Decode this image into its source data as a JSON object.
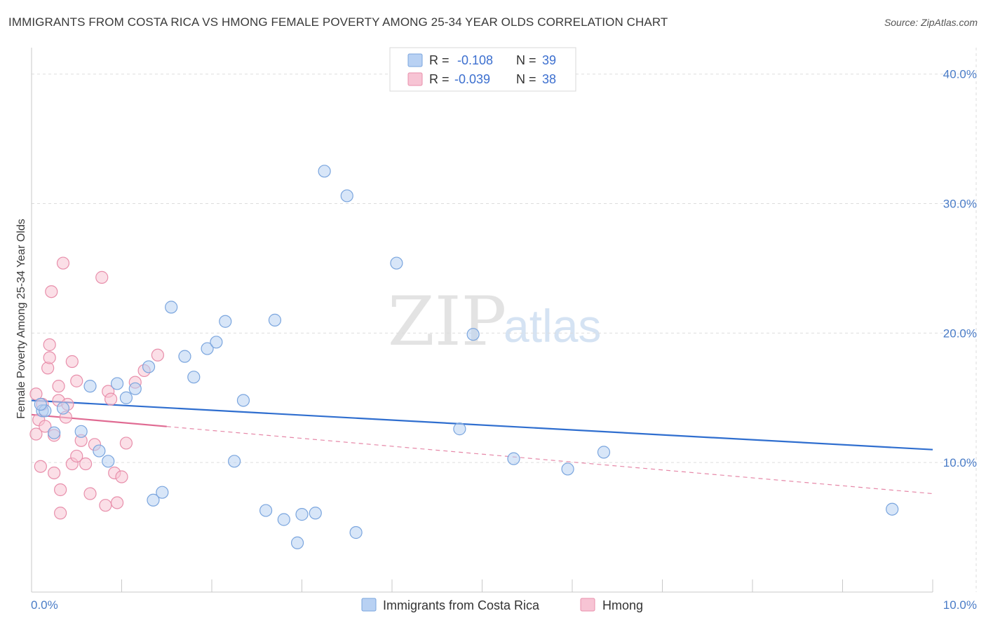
{
  "header": {
    "title": "IMMIGRANTS FROM COSTA RICA VS HMONG FEMALE POVERTY AMONG 25-34 YEAR OLDS CORRELATION CHART",
    "source": "Source: ZipAtlas.com"
  },
  "watermark": {
    "zip": "ZIP",
    "atlas": "atlas"
  },
  "colors": {
    "blue_fill": "#b8d1f3",
    "blue_stroke": "#7aa5de",
    "blue_line": "#2f6ecf",
    "pink_fill": "#f7c4d4",
    "pink_stroke": "#e88fab",
    "pink_line": "#e06a92",
    "tick": "#4a7cc7",
    "grid": "#dddddd"
  },
  "legend": {
    "r_label": "R =",
    "n_label": "N =",
    "series": [
      {
        "r": "-0.108",
        "n": "39"
      },
      {
        "r": "-0.039",
        "n": "38"
      }
    ]
  },
  "bottom_legend": [
    "Immigrants from Costa Rica",
    "Hmong"
  ],
  "chart_data": {
    "type": "scatter",
    "title": "IMMIGRANTS FROM COSTA RICA VS HMONG FEMALE POVERTY AMONG 25-34 YEAR OLDS CORRELATION CHART",
    "xlabel": "",
    "ylabel": "Female Poverty Among 25-34 Year Olds",
    "xlim": [
      0,
      10
    ],
    "ylim": [
      0,
      41.5
    ],
    "x_tick_labels": [
      "0.0%",
      "10.0%"
    ],
    "y_ticks": [
      10,
      20,
      30,
      40
    ],
    "y_tick_labels": [
      "10.0%",
      "20.0%",
      "30.0%",
      "40.0%"
    ],
    "grid": true,
    "series": [
      {
        "name": "Immigrants from Costa Rica",
        "r": -0.108,
        "n": 39,
        "trend": {
          "x": [
            0.0,
            10.0
          ],
          "y": [
            14.8,
            11.0
          ],
          "style": "solid",
          "color": "#2f6ecf"
        },
        "points": [
          [
            0.12,
            14.0
          ],
          [
            0.15,
            14.0
          ],
          [
            0.25,
            12.3
          ],
          [
            0.35,
            14.2
          ],
          [
            0.55,
            12.4
          ],
          [
            0.65,
            15.9
          ],
          [
            0.75,
            10.9
          ],
          [
            0.85,
            10.1
          ],
          [
            0.95,
            16.1
          ],
          [
            1.05,
            15.0
          ],
          [
            1.15,
            15.7
          ],
          [
            1.3,
            17.4
          ],
          [
            1.35,
            7.1
          ],
          [
            1.45,
            7.7
          ],
          [
            1.55,
            22.0
          ],
          [
            1.7,
            18.2
          ],
          [
            1.8,
            16.6
          ],
          [
            1.95,
            18.8
          ],
          [
            2.05,
            19.3
          ],
          [
            2.15,
            20.9
          ],
          [
            2.25,
            10.1
          ],
          [
            2.35,
            14.8
          ],
          [
            2.6,
            6.3
          ],
          [
            2.7,
            21.0
          ],
          [
            2.8,
            5.6
          ],
          [
            2.95,
            3.8
          ],
          [
            3.0,
            6.0
          ],
          [
            3.15,
            6.1
          ],
          [
            3.25,
            32.5
          ],
          [
            3.5,
            30.6
          ],
          [
            3.6,
            4.6
          ],
          [
            4.05,
            25.4
          ],
          [
            4.75,
            12.6
          ],
          [
            4.9,
            19.9
          ],
          [
            5.35,
            10.3
          ],
          [
            5.95,
            9.5
          ],
          [
            6.35,
            10.8
          ],
          [
            9.55,
            6.4
          ],
          [
            0.1,
            14.5
          ]
        ]
      },
      {
        "name": "Hmong",
        "r": -0.039,
        "n": 38,
        "trend": {
          "x": [
            0.0,
            10.0
          ],
          "y": [
            13.7,
            7.6
          ],
          "solid_until_x": 1.5,
          "style": "solid-then-dashed",
          "color": "#e06a92"
        },
        "points": [
          [
            0.05,
            12.2
          ],
          [
            0.08,
            13.3
          ],
          [
            0.1,
            9.7
          ],
          [
            0.12,
            14.5
          ],
          [
            0.15,
            12.8
          ],
          [
            0.18,
            17.3
          ],
          [
            0.2,
            18.1
          ],
          [
            0.2,
            19.1
          ],
          [
            0.22,
            23.2
          ],
          [
            0.25,
            12.1
          ],
          [
            0.25,
            9.2
          ],
          [
            0.3,
            15.9
          ],
          [
            0.3,
            14.8
          ],
          [
            0.32,
            7.9
          ],
          [
            0.32,
            6.1
          ],
          [
            0.35,
            25.4
          ],
          [
            0.38,
            13.5
          ],
          [
            0.4,
            14.5
          ],
          [
            0.45,
            17.8
          ],
          [
            0.45,
            9.9
          ],
          [
            0.5,
            16.3
          ],
          [
            0.5,
            10.5
          ],
          [
            0.55,
            11.7
          ],
          [
            0.6,
            9.9
          ],
          [
            0.65,
            7.6
          ],
          [
            0.7,
            11.4
          ],
          [
            0.78,
            24.3
          ],
          [
            0.82,
            6.7
          ],
          [
            0.85,
            15.5
          ],
          [
            0.88,
            14.9
          ],
          [
            0.92,
            9.2
          ],
          [
            0.95,
            6.9
          ],
          [
            1.0,
            8.9
          ],
          [
            1.05,
            11.5
          ],
          [
            1.15,
            16.2
          ],
          [
            1.25,
            17.1
          ],
          [
            1.4,
            18.3
          ],
          [
            0.05,
            15.3
          ]
        ]
      }
    ]
  }
}
